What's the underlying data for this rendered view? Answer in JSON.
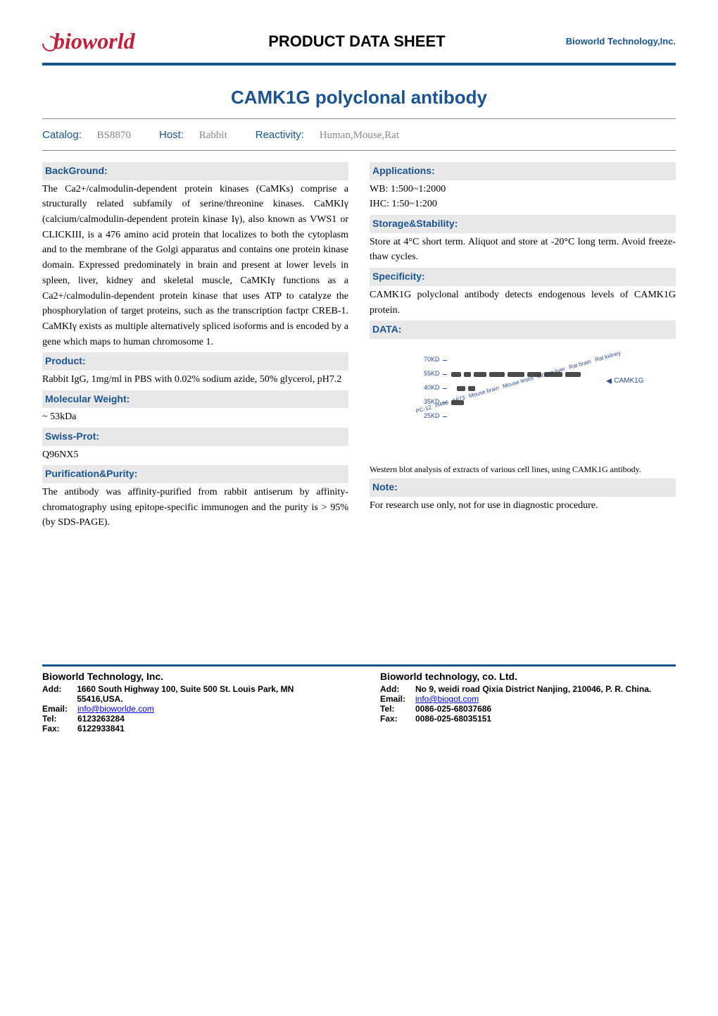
{
  "header": {
    "logo_text": "bioworld",
    "sheet_title": "PRODUCT DATA SHEET",
    "company": "Bioworld Technology,Inc."
  },
  "product_title": "CAMK1G polyclonal antibody",
  "meta": {
    "catalog_label": "Catalog:",
    "catalog_val": "BS8870",
    "host_label": "Host:",
    "host_val": "Rabbit",
    "reactivity_label": "Reactivity:",
    "reactivity_val": "Human,Mouse,Rat"
  },
  "sections": {
    "background_hdr": "BackGround:",
    "background_text": "The Ca2+/calmodulin-dependent protein kinases (CaMKs) comprise a structurally related subfamily of serine/threonine kinases. CaMKIγ (calcium/calmodulin-dependent protein kinase Iγ), also known as VWS1 or CLICKIII, is a 476 amino acid protein that localizes to both the cytoplasm and to the membrane of the Golgi apparatus and contains one protein kinase domain. Expressed predominately in brain and present at lower levels in spleen, liver, kidney and skeletal muscle, CaMKIγ functions as a Ca2+/calmodulin-dependent protein kinase that uses ATP to catalyze the phosphorylation of target proteins, such as the transcription factpr CREB-1. CaMKIγ exists as multiple alternatively spliced isoforms and is encoded by a gene which maps to human chromosome 1.",
    "product_hdr": "Product:",
    "product_text": "Rabbit IgG, 1mg/ml in PBS with 0.02% sodium azide, 50% glycerol, pH7.2",
    "mw_hdr": "Molecular Weight:",
    "mw_text": "~ 53kDa",
    "swiss_hdr": "Swiss-Prot:",
    "swiss_text": "Q96NX5",
    "purity_hdr": "Purification&Purity:",
    "purity_text": "The antibody was affinity-purified from rabbit antiserum by affinity-chromatography using epitope-specific immunogen and the purity is > 95% (by SDS-PAGE).",
    "apps_hdr": "Applications:",
    "apps_wb": "WB: 1:500~1:2000",
    "apps_ihc": "IHC: 1:50~1:200",
    "storage_hdr": "Storage&Stability:",
    "storage_text": "Store at 4°C short term. Aliquot and store at -20°C long term. Avoid freeze-thaw cycles.",
    "spec_hdr": "Specificity:",
    "spec_text": "CAMK1G polyclonal antibody detects endogenous levels of CAMK1G protein.",
    "data_hdr": "DATA:",
    "note_hdr": "Note:",
    "note_text": "For research use only, not for use in diagnostic procedure."
  },
  "blot": {
    "lane_labels": [
      "PC-12",
      "H460",
      "A673",
      "Mouse brain",
      "Mouse testis",
      "Mouse liver",
      "Rat brain",
      "Rat kidney"
    ],
    "kd_markers": [
      "70KD",
      "55KD",
      "40KD",
      "35KD",
      "25KD"
    ],
    "target_label": "CAMK1G",
    "bands": {
      "row55": [
        14,
        10,
        18,
        22,
        24,
        20,
        26,
        22
      ],
      "row40": [
        0,
        0,
        12,
        10,
        0,
        0,
        0,
        0
      ],
      "row35": [
        18,
        0,
        0,
        0,
        0,
        0,
        0,
        0
      ]
    },
    "label_color": "#2a4d8f",
    "band_color": "#2b2b2b",
    "caption": "Western blot analysis of extracts of various cell lines, using CAMK1G antibody."
  },
  "footer": {
    "left": {
      "name": "Bioworld Technology, Inc.",
      "add_label": "Add:",
      "add": "1660 South Highway 100, Suite 500 St. Louis Park, MN 55416,USA.",
      "email_label": "Email:",
      "email": "info@bioworlde.com",
      "tel_label": "Tel:",
      "tel": "6123263284",
      "fax_label": "Fax:",
      "fax": "6122933841"
    },
    "right": {
      "name": "Bioworld technology, co. Ltd.",
      "add_label": "Add:",
      "add": "No 9, weidi road Qixia District Nanjing, 210046, P. R. China.",
      "email_label": "Email:",
      "email": "info@biogot.com",
      "tel_label": "Tel:",
      "tel": "0086-025-68037686",
      "fax_label": "Fax:",
      "fax": "0086-025-68035151"
    }
  }
}
